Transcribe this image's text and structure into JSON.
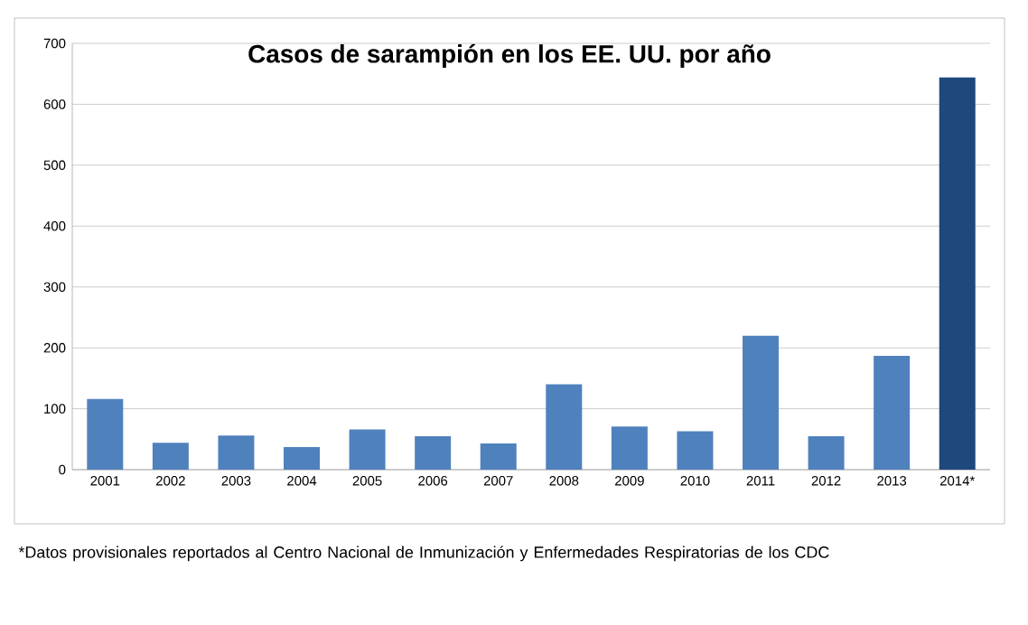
{
  "chart_data": {
    "type": "bar",
    "title": "Casos de sarampión en los EE. UU. por año",
    "categories": [
      "2001",
      "2002",
      "2003",
      "2004",
      "2005",
      "2006",
      "2007",
      "2008",
      "2009",
      "2010",
      "2011",
      "2012",
      "2013",
      "2014*"
    ],
    "values": [
      116,
      44,
      56,
      37,
      66,
      55,
      43,
      140,
      71,
      63,
      220,
      55,
      187,
      644
    ],
    "colors": [
      "#4f81bd",
      "#4f81bd",
      "#4f81bd",
      "#4f81bd",
      "#4f81bd",
      "#4f81bd",
      "#4f81bd",
      "#4f81bd",
      "#4f81bd",
      "#4f81bd",
      "#4f81bd",
      "#4f81bd",
      "#4f81bd",
      "#1f497d"
    ],
    "ylim": [
      0,
      700
    ],
    "yticks": [
      0,
      100,
      200,
      300,
      400,
      500,
      600,
      700
    ],
    "grid": "y",
    "annotations": [
      "*Datos provisionales reportados al Centro Nacional de Inmunización y Enfermedades Respiratorias de los CDC"
    ]
  }
}
